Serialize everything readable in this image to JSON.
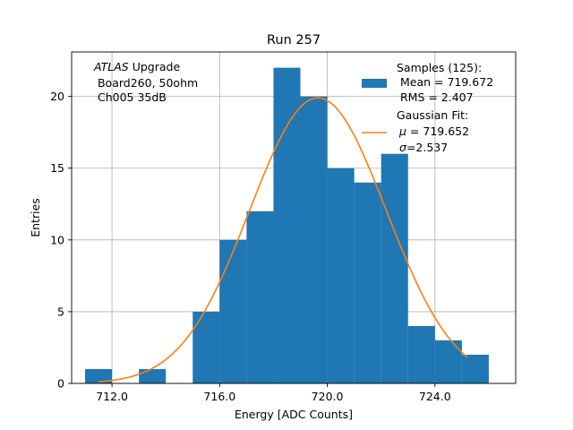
{
  "chart_data": {
    "type": "bar",
    "title": "Run 257",
    "xlabel": "Energy [ADC Counts]",
    "ylabel": "Entries",
    "xlim": [
      710.5,
      727.0
    ],
    "ylim": [
      0,
      23.1
    ],
    "grid": true,
    "bins": [
      {
        "x0": 711,
        "x1": 712,
        "count": 1
      },
      {
        "x0": 712,
        "x1": 713,
        "count": 0
      },
      {
        "x0": 713,
        "x1": 714,
        "count": 1
      },
      {
        "x0": 714,
        "x1": 715,
        "count": 0
      },
      {
        "x0": 715,
        "x1": 716,
        "count": 5
      },
      {
        "x0": 716,
        "x1": 717,
        "count": 10
      },
      {
        "x0": 717,
        "x1": 718,
        "count": 12
      },
      {
        "x0": 718,
        "x1": 719,
        "count": 22
      },
      {
        "x0": 719,
        "x1": 720,
        "count": 20
      },
      {
        "x0": 720,
        "x1": 721,
        "count": 15
      },
      {
        "x0": 721,
        "x1": 722,
        "count": 14
      },
      {
        "x0": 722,
        "x1": 723,
        "count": 16
      },
      {
        "x0": 723,
        "x1": 724,
        "count": 4
      },
      {
        "x0": 724,
        "x1": 725,
        "count": 3
      },
      {
        "x0": 725,
        "x1": 726,
        "count": 2
      }
    ],
    "fit": {
      "type": "gaussian",
      "mu": 719.652,
      "sigma": 2.537,
      "amplitude": 19.9,
      "x_range": [
        711.5,
        725.2
      ]
    },
    "xticks": [
      712.0,
      716.0,
      720.0,
      724.0
    ],
    "xtick_labels": [
      "712.0",
      "716.0",
      "720.0",
      "724.0"
    ],
    "yticks": [
      0,
      5,
      10,
      15,
      20
    ],
    "ytick_labels": [
      "0",
      "5",
      "10",
      "15",
      "20"
    ],
    "annotation": {
      "line1_italic": "ATLAS",
      "line1_rest": " Upgrade",
      "line2": " Board260, 50ohm",
      "line3": " Ch005 35dB"
    },
    "legend": {
      "placement": "top-right",
      "samples": {
        "line1": "Samples (125):",
        "line2": " Mean = 719.672",
        "line3": " RMS = 2.407"
      },
      "fit": {
        "line1": "Gaussian Fit:",
        "line2_symbol": "μ",
        "line2_rest": " = 719.652",
        "line3_symbol": "σ",
        "line3_rest": "=2.537"
      }
    },
    "colors": {
      "bars": "#1f77b4",
      "fit": "#ff7f0e",
      "grid": "#b0b0b0"
    }
  }
}
